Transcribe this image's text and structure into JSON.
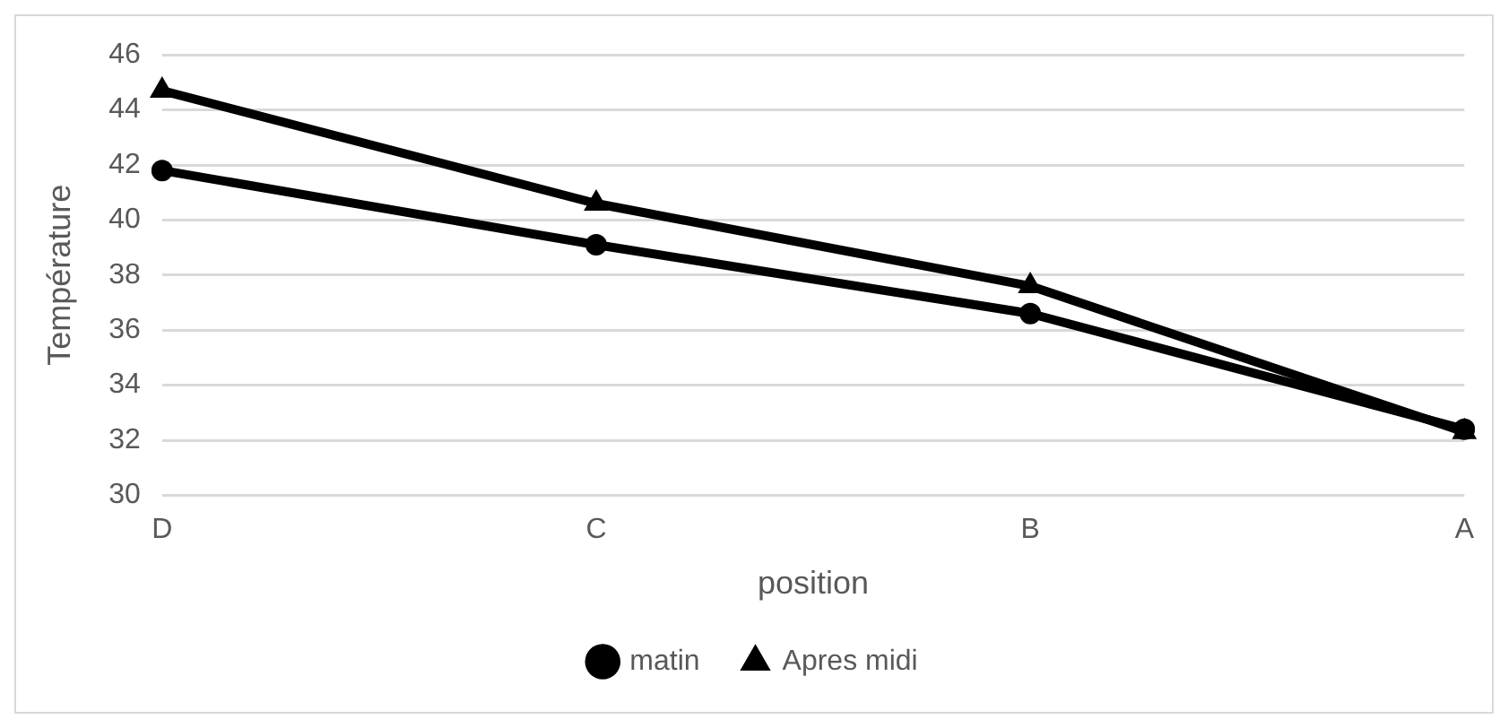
{
  "chart_data": {
    "type": "line",
    "xlabel": "position",
    "ylabel": "Température",
    "categories": [
      "D",
      "C",
      "B",
      "A"
    ],
    "ylim": [
      30,
      46
    ],
    "yticks": [
      30,
      32,
      34,
      36,
      38,
      40,
      42,
      44,
      46
    ],
    "grid": "y",
    "legend": "bottom",
    "line_style": "solid",
    "series": [
      {
        "name": "matin",
        "color": "#000000",
        "marker": "circle",
        "values": [
          41.8,
          39.1,
          36.6,
          32.4
        ]
      },
      {
        "name": "Apres midi",
        "color": "#000000",
        "marker": "triangle",
        "values": [
          44.7,
          40.6,
          37.6,
          32.3
        ]
      }
    ]
  }
}
